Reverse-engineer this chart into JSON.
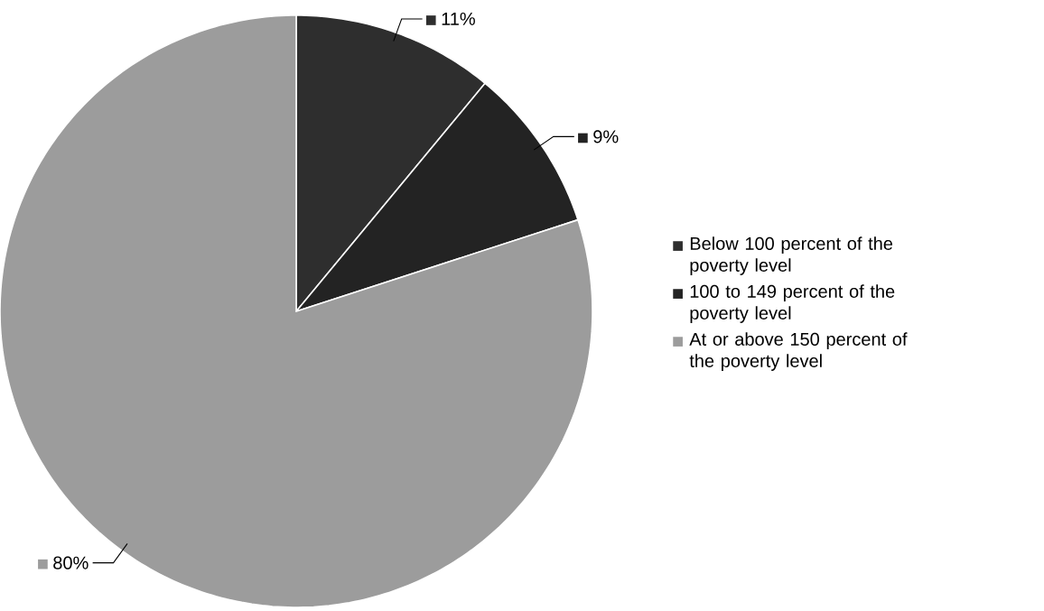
{
  "chart_data": {
    "type": "pie",
    "categories": [
      "Below 100 percent of the poverty level",
      "100 to 149 percent of the poverty level",
      "At or above 150 percent of the poverty level"
    ],
    "values": [
      11,
      9,
      80
    ],
    "value_labels": [
      "11%",
      "9%",
      "80%"
    ],
    "colors": [
      "#2e2e2e",
      "#232323",
      "#9c9c9c"
    ],
    "legend": "right"
  }
}
